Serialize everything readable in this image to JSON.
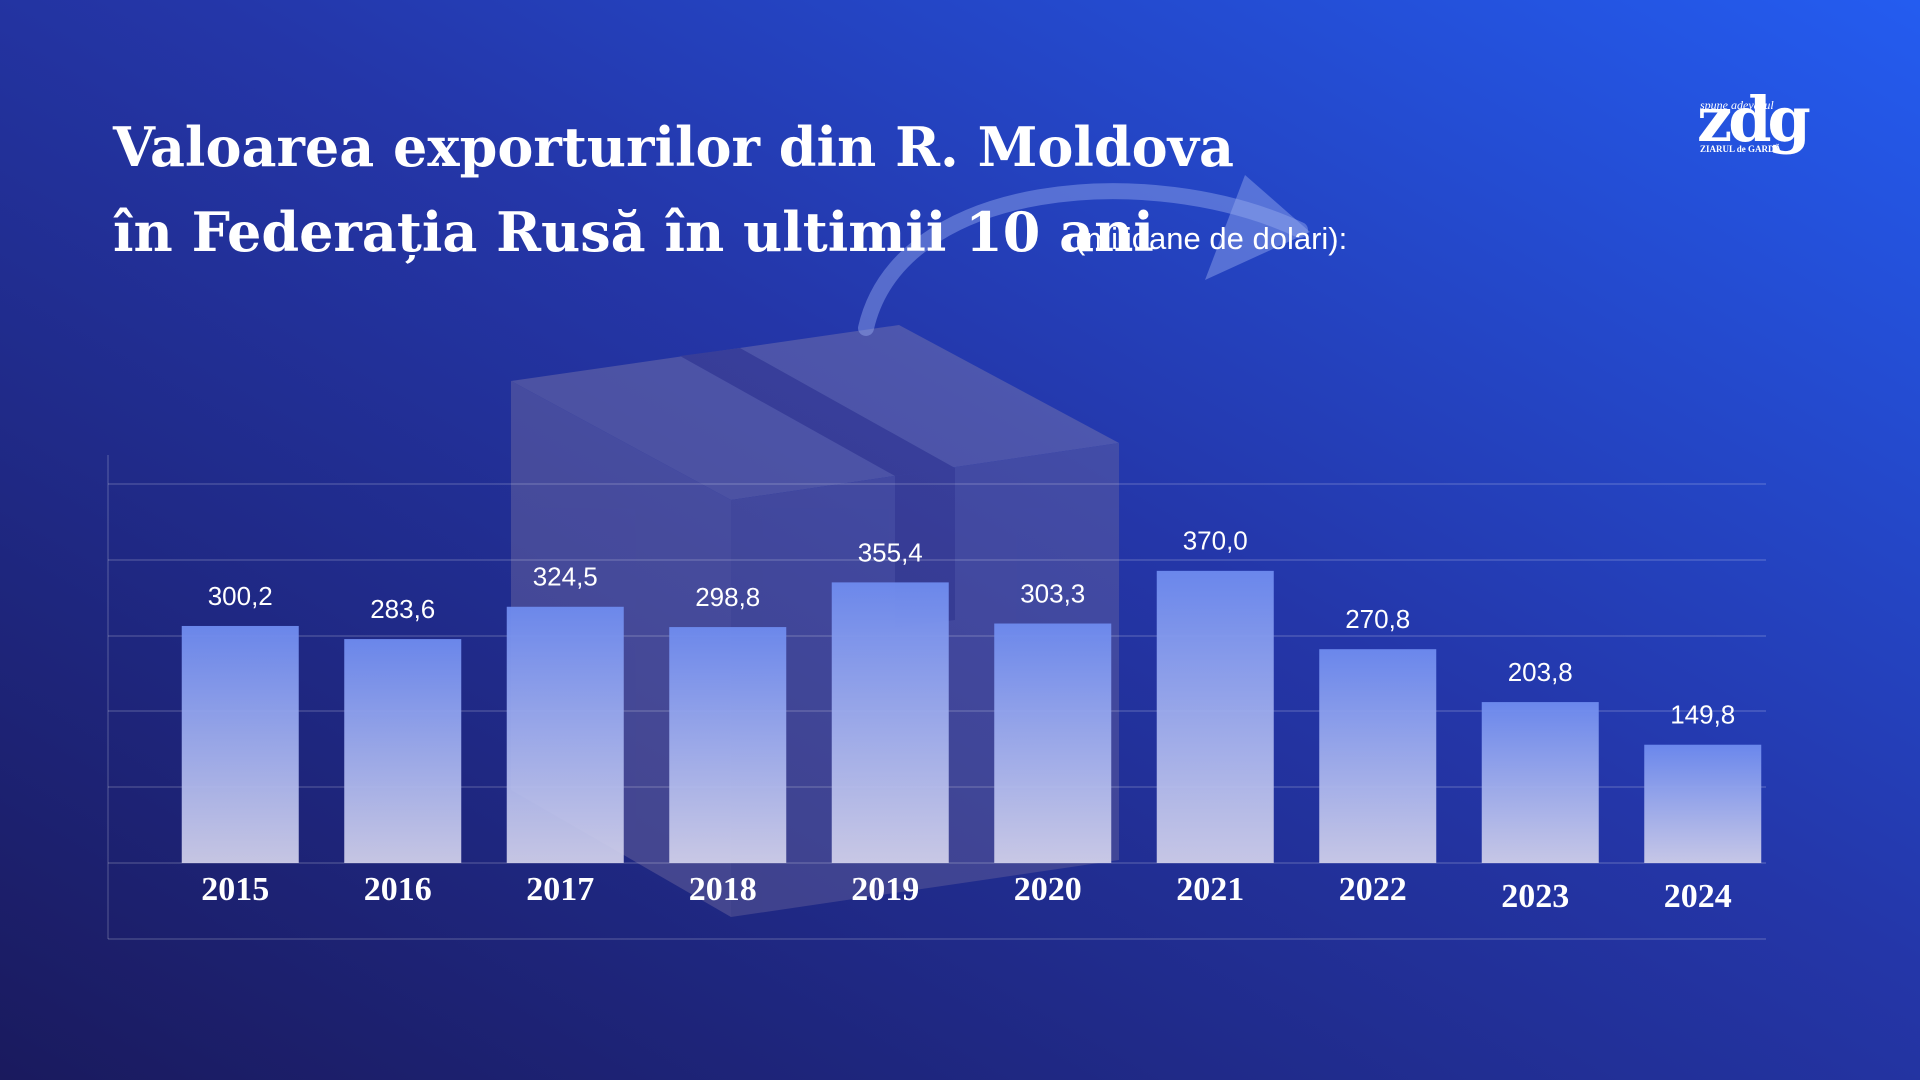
{
  "chart_data": {
    "type": "bar",
    "title": [
      "Valoarea exporturilor din R. Moldova",
      "în Federația Rusă în ultimii 10 ani"
    ],
    "subtitle": "(milioane de dolari):",
    "categories": [
      "2015",
      "2016",
      "2017",
      "2018",
      "2019",
      "2020",
      "2021",
      "2022",
      "2023",
      "2024"
    ],
    "values": [
      300.2,
      283.6,
      324.5,
      298.8,
      355.4,
      303.3,
      370.0,
      270.8,
      203.8,
      149.8
    ],
    "value_labels": [
      "300,2",
      "283,6",
      "324,5",
      "298,8",
      "355,4",
      "303,3",
      "370,0",
      "270,8",
      "203,8",
      "149,8"
    ],
    "ylim": [
      0,
      480
    ]
  },
  "logo": {
    "tagline": "spune adevărul",
    "name": "zdg",
    "publisher": "ZIARUL de GARDĂ"
  }
}
